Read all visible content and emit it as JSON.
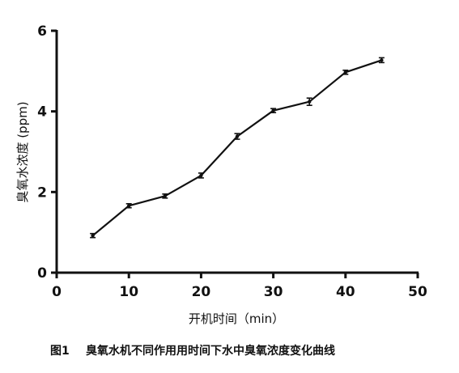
{
  "chart_data": {
    "type": "line",
    "xlabel": "开机时间（min）",
    "ylabel": "臭氧水浓度 (ppm)",
    "xlim": [
      0,
      50
    ],
    "ylim": [
      0,
      6
    ],
    "xticks": [
      0,
      10,
      20,
      30,
      40,
      50
    ],
    "yticks": [
      0,
      2,
      4,
      6
    ],
    "grid": false,
    "legend": "none",
    "series": [
      {
        "x": [
          5,
          10,
          15,
          20,
          25,
          30,
          35,
          40,
          45
        ],
        "y": [
          0.92,
          1.66,
          1.9,
          2.41,
          3.38,
          4.02,
          4.24,
          4.97,
          5.27
        ],
        "error": [
          0.05,
          0.05,
          0.05,
          0.06,
          0.07,
          0.05,
          0.09,
          0.05,
          0.06
        ],
        "color": "#111111"
      }
    ]
  },
  "caption": {
    "label": "图1",
    "text": "臭氧水机不同作用用时间下水中臭氧浓度变化曲线"
  }
}
